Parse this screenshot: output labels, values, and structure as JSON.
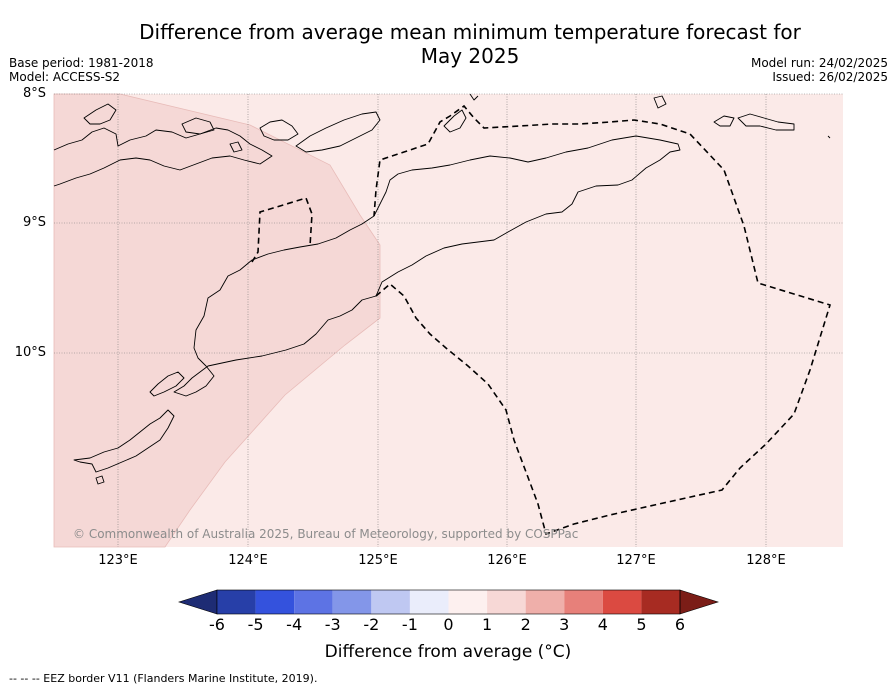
{
  "title_line1": "Difference from average mean minimum temperature forecast for",
  "title_line2": "May 2025",
  "meta_left": {
    "base_period": "Base period: 1981-2018",
    "model": "Model: ACCESS-S2"
  },
  "meta_right": {
    "model_run": "Model run: 24/02/2025",
    "issued": "Issued: 26/02/2025"
  },
  "lat_labels": [
    "8°S",
    "9°S",
    "10°S"
  ],
  "lon_labels": [
    "123°E",
    "124°E",
    "125°E",
    "126°E",
    "127°E",
    "128°E"
  ],
  "copyright": "© Commonwealth of Australia 2025, Bureau of Meteorology, supported by COSPPac",
  "colorbar": {
    "ticks": [
      "-6",
      "-5",
      "-4",
      "-3",
      "-2",
      "-1",
      "0",
      "1",
      "2",
      "3",
      "4",
      "5",
      "6"
    ],
    "colors": [
      "#273fa8",
      "#3452dd",
      "#5d73e4",
      "#8396e9",
      "#bfc8f2",
      "#eaedfb",
      "#fdf0ef",
      "#f7d8d6",
      "#efafaa",
      "#e7807a",
      "#db4a41",
      "#a72b22"
    ],
    "under_color": "#1e2c74",
    "over_color": "#7b1d17",
    "title": "Difference from average (°C)"
  },
  "field_colors": {
    "light": "#fbeae8",
    "medium": "#f5d8d6"
  },
  "footer": "-- -- -- EEZ border V11 (Flanders Marine Institute, 2019)."
}
